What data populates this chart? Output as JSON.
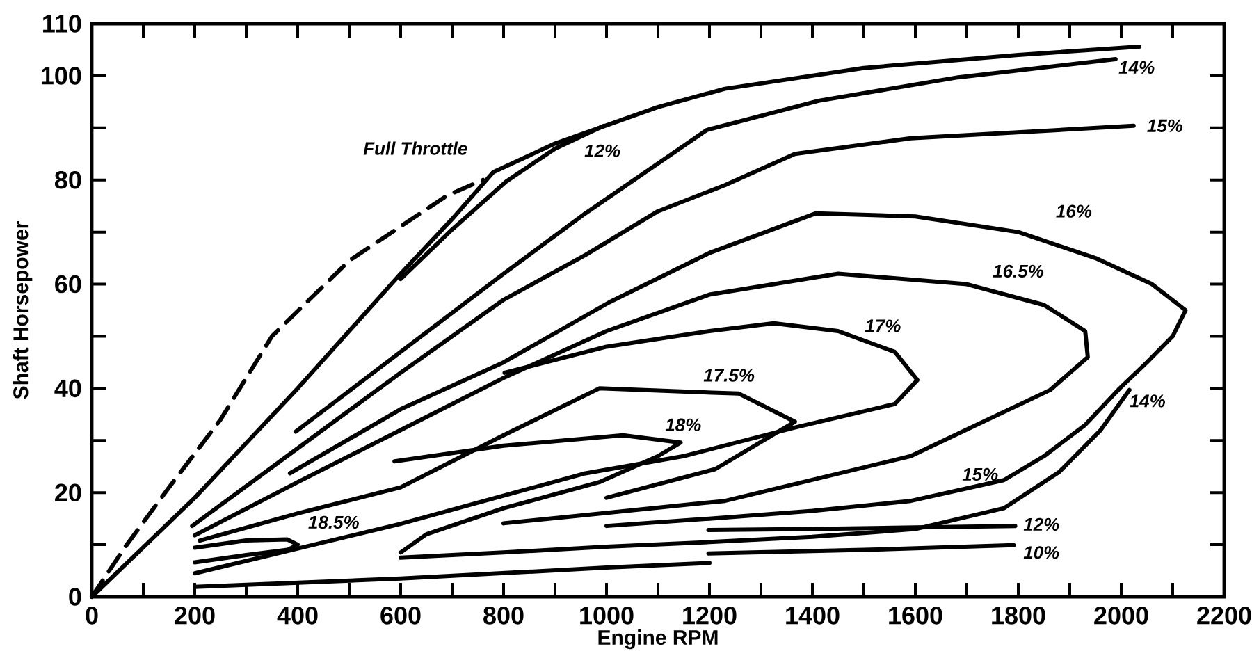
{
  "chart_data": {
    "type": "line",
    "xlabel": "Engine RPM",
    "ylabel": "Shaft Horsepower",
    "xlim": [
      0,
      2200
    ],
    "ylim": [
      0,
      110
    ],
    "xticks": [
      0,
      {
        "value": 100,
        "label": null
      },
      200,
      {
        "value": 300,
        "label": null
      },
      400,
      {
        "value": 500,
        "label": null
      },
      600,
      {
        "value": 700,
        "label": null
      },
      800,
      {
        "value": 900,
        "label": null
      },
      1000,
      {
        "value": 1100,
        "label": null
      },
      1200,
      {
        "value": 1300,
        "label": null
      },
      1400,
      {
        "value": 1500,
        "label": null
      },
      1600,
      {
        "value": 1700,
        "label": null
      },
      1800,
      {
        "value": 1900,
        "label": null
      },
      2000,
      {
        "value": 2100,
        "label": null
      },
      2200
    ],
    "yticks": [
      0,
      {
        "value": 10,
        "label": null
      },
      20,
      {
        "value": 30,
        "label": null
      },
      40,
      {
        "value": 50,
        "label": null
      },
      60,
      {
        "value": 70,
        "label": null
      },
      80,
      {
        "value": 90,
        "label": null
      },
      100,
      110
    ],
    "grid": false,
    "legend": false,
    "series": [
      {
        "name": "Full Throttle",
        "color": "#000000",
        "x": [
          0,
          100,
          200,
          300,
          400,
          500,
          600,
          700,
          780,
          900,
          1000,
          1100,
          1230,
          1500,
          1800,
          2035
        ],
        "values": [
          0,
          9.5,
          19,
          29.5,
          40,
          51,
          62,
          72.5,
          81.5,
          87,
          90.5,
          94,
          97.5,
          101.5,
          104,
          105.6
        ]
      },
      {
        "color": "#000000",
        "line_style": "dashed",
        "x": [
          0,
          65,
          150,
          250,
          350,
          500,
          690,
          760
        ],
        "values": [
          0,
          9.6,
          21,
          34,
          50,
          64.5,
          77,
          80
        ]
      },
      {
        "color": "#000000",
        "x": [
          600,
          700,
          805,
          900,
          995
        ],
        "values": [
          61,
          70.5,
          79.7,
          86,
          90.4
        ]
      },
      {
        "color": "#000000",
        "x": [
          396,
          600,
          800,
          959,
          1049,
          1195,
          1412,
          1683,
          1989
        ],
        "values": [
          31.7,
          47,
          62,
          73.6,
          79.7,
          89.6,
          95.2,
          99.7,
          103.2
        ]
      },
      {
        "color": "#000000",
        "x": [
          195,
          400,
          600,
          800,
          959,
          1100,
          1230,
          1366,
          1591,
          2024
        ],
        "values": [
          13.6,
          28.5,
          43,
          57,
          65.6,
          74,
          79,
          85,
          88,
          90.4
        ]
      },
      {
        "color": "#000000",
        "x": [
          385,
          600,
          800,
          1005,
          1200,
          1407,
          1600,
          1800,
          1950,
          2060,
          2125,
          2100,
          2050,
          1997,
          1930,
          1850,
          1772,
          1591,
          1400,
          1200,
          1000
        ],
        "values": [
          23.7,
          36,
          45,
          56.5,
          66,
          73.6,
          73,
          70,
          65,
          60,
          55,
          50,
          45,
          40,
          33,
          27,
          22.4,
          18.4,
          16.5,
          15,
          13.6
        ]
      },
      {
        "color": "#000000",
        "x": [
          200,
          400,
          600,
          800,
          1000,
          1200,
          1450,
          1700,
          1850,
          1930,
          1935,
          1862,
          1591,
          1230,
          959,
          800
        ],
        "values": [
          11.8,
          22,
          32,
          42,
          51,
          58,
          62,
          60,
          56,
          51,
          46,
          39.7,
          27,
          18.4,
          15.7,
          14.1
        ]
      },
      {
        "color": "#000000",
        "x": [
          802,
          1000,
          1200,
          1325,
          1450,
          1560,
          1604,
          1560,
          1366,
          1150,
          959,
          600,
          200
        ],
        "values": [
          43,
          48,
          51,
          52.5,
          51,
          47,
          41.6,
          37,
          32.5,
          27,
          23.7,
          14,
          4.5
        ]
      },
      {
        "color": "#000000",
        "x": [
          210,
          400,
          600,
          800,
          986,
          1257,
          1366,
          1211,
          1000
        ],
        "values": [
          10.8,
          16,
          21,
          31,
          40,
          39,
          33.6,
          24.5,
          19
        ]
      },
      {
        "color": "#000000",
        "x": [
          588,
          800,
          1032,
          1144,
          1100,
          986,
          800,
          650,
          600
        ],
        "values": [
          26,
          29,
          31,
          29.6,
          27,
          22,
          17,
          12,
          8.5
        ]
      },
      {
        "color": "#000000",
        "x": [
          200,
          300,
          380,
          400,
          380,
          300,
          200
        ],
        "values": [
          9.4,
          10.8,
          11,
          10,
          9,
          8,
          6.6
        ]
      },
      {
        "color": "#000000",
        "x": [
          2016,
          1960,
          1880,
          1772,
          1600,
          1400,
          1200,
          1000,
          800,
          600
        ],
        "values": [
          39.7,
          32,
          24,
          17,
          13,
          11.5,
          10.5,
          9.6,
          8.5,
          7.5
        ]
      },
      {
        "color": "#000000",
        "x": [
          1198,
          1400,
          1600,
          1794
        ],
        "values": [
          12.8,
          13,
          13.3,
          13.6
        ]
      },
      {
        "color": "#000000",
        "x": [
          1198,
          1500,
          1791
        ],
        "values": [
          8.3,
          9,
          9.9
        ]
      },
      {
        "color": "#000000",
        "x": [
          200,
          600,
          1000,
          1200
        ],
        "values": [
          1.9,
          3.5,
          5.6,
          6.5
        ]
      }
    ],
    "annotations": [
      "12%",
      "14%",
      "15%",
      "16%",
      "16.5%",
      "17%",
      "17.5%",
      "18%",
      "18.5%",
      "15%",
      "14%",
      "12%",
      "10%"
    ]
  }
}
